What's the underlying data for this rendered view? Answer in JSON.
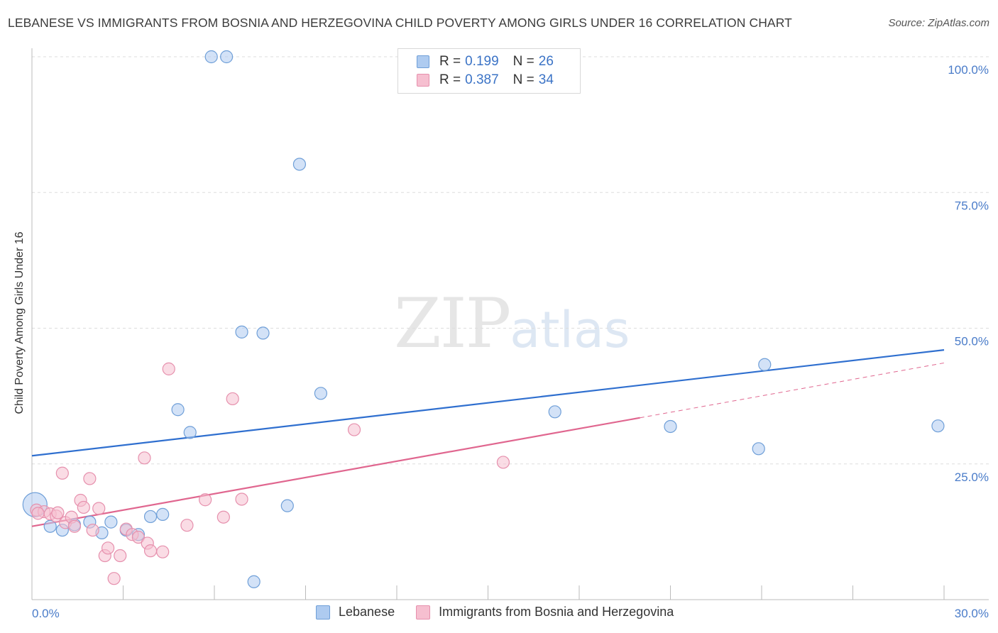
{
  "title": "LEBANESE VS IMMIGRANTS FROM BOSNIA AND HERZEGOVINA CHILD POVERTY AMONG GIRLS UNDER 16 CORRELATION CHART",
  "source": "Source: ZipAtlas.com",
  "watermark": {
    "zip": "ZIP",
    "atlas": "atlas"
  },
  "legend": {
    "rows": [
      {
        "r_label": "R =",
        "r_value": "0.199",
        "n_label": "N =",
        "n_value": "26"
      },
      {
        "r_label": "R =",
        "r_value": "0.387",
        "n_label": "N =",
        "n_value": "34"
      }
    ],
    "bottom": [
      "Lebanese",
      "Immigrants from Bosnia and Herzegovina"
    ]
  },
  "colors": {
    "blue_fill": "#aecbf0",
    "blue_stroke": "#6f9fd8",
    "blue_line": "#2f6fcf",
    "pink_fill": "#f6bfd0",
    "pink_stroke": "#e690ad",
    "pink_line": "#e0668f",
    "grid": "#dddddd",
    "tick_text": "#4a7cc9"
  },
  "chart_data": {
    "type": "scatter",
    "title": "LEBANESE VS IMMIGRANTS FROM BOSNIA AND HERZEGOVINA CHILD POVERTY AMONG GIRLS UNDER 16 CORRELATION CHART",
    "xlabel": "",
    "ylabel": "Child Poverty Among Girls Under 16",
    "xlim": [
      0,
      30
    ],
    "ylim": [
      0,
      100
    ],
    "x_tick_labels": [
      "0.0%",
      "30.0%"
    ],
    "y_ticks": [
      25,
      50,
      75,
      100
    ],
    "y_tick_labels": [
      "25.0%",
      "50.0%",
      "75.0%",
      "100.0%"
    ],
    "grid": true,
    "series": [
      {
        "name": "Lebanese",
        "color": "#6f9fd8",
        "r": 0.199,
        "n": 26,
        "points": [
          {
            "x": 0.1,
            "y": 17.5,
            "big": true
          },
          {
            "x": 0.6,
            "y": 13.5
          },
          {
            "x": 1.0,
            "y": 12.8
          },
          {
            "x": 1.4,
            "y": 13.8
          },
          {
            "x": 1.9,
            "y": 14.3
          },
          {
            "x": 2.3,
            "y": 12.3
          },
          {
            "x": 2.6,
            "y": 14.3
          },
          {
            "x": 3.1,
            "y": 12.8
          },
          {
            "x": 3.5,
            "y": 12.0
          },
          {
            "x": 3.9,
            "y": 15.3
          },
          {
            "x": 4.3,
            "y": 15.7
          },
          {
            "x": 4.8,
            "y": 35.0
          },
          {
            "x": 5.2,
            "y": 30.8
          },
          {
            "x": 5.9,
            "y": 100.0
          },
          {
            "x": 6.4,
            "y": 100.0
          },
          {
            "x": 6.9,
            "y": 49.3
          },
          {
            "x": 7.3,
            "y": 3.3
          },
          {
            "x": 7.6,
            "y": 49.1
          },
          {
            "x": 8.4,
            "y": 17.3
          },
          {
            "x": 8.8,
            "y": 80.2
          },
          {
            "x": 9.5,
            "y": 38.0
          },
          {
            "x": 17.2,
            "y": 34.6
          },
          {
            "x": 21.0,
            "y": 31.9
          },
          {
            "x": 23.9,
            "y": 27.8
          },
          {
            "x": 24.1,
            "y": 43.3
          },
          {
            "x": 29.8,
            "y": 32.0
          }
        ],
        "trend": {
          "x1": 0,
          "y1": 26.5,
          "x2": 30,
          "y2": 46.0
        }
      },
      {
        "name": "Immigrants from Bosnia and Herzegovina",
        "color": "#e690ad",
        "r": 0.387,
        "n": 34,
        "points": [
          {
            "x": 0.15,
            "y": 16.5
          },
          {
            "x": 0.4,
            "y": 16.2
          },
          {
            "x": 0.6,
            "y": 15.8
          },
          {
            "x": 0.8,
            "y": 15.4
          },
          {
            "x": 0.85,
            "y": 16.0
          },
          {
            "x": 1.0,
            "y": 23.3
          },
          {
            "x": 1.1,
            "y": 14.2
          },
          {
            "x": 1.3,
            "y": 15.2
          },
          {
            "x": 1.4,
            "y": 13.5
          },
          {
            "x": 1.6,
            "y": 18.3
          },
          {
            "x": 1.7,
            "y": 17.0
          },
          {
            "x": 1.9,
            "y": 22.3
          },
          {
            "x": 2.0,
            "y": 12.8
          },
          {
            "x": 2.2,
            "y": 16.8
          },
          {
            "x": 2.4,
            "y": 8.1
          },
          {
            "x": 2.5,
            "y": 9.5
          },
          {
            "x": 2.7,
            "y": 3.9
          },
          {
            "x": 2.9,
            "y": 8.1
          },
          {
            "x": 3.1,
            "y": 13.0
          },
          {
            "x": 3.3,
            "y": 12.0
          },
          {
            "x": 3.5,
            "y": 11.5
          },
          {
            "x": 3.7,
            "y": 26.1
          },
          {
            "x": 3.8,
            "y": 10.4
          },
          {
            "x": 3.9,
            "y": 9.0
          },
          {
            "x": 4.3,
            "y": 8.8
          },
          {
            "x": 4.5,
            "y": 42.5
          },
          {
            "x": 5.1,
            "y": 13.7
          },
          {
            "x": 5.7,
            "y": 18.4
          },
          {
            "x": 6.3,
            "y": 15.2
          },
          {
            "x": 6.6,
            "y": 37.0
          },
          {
            "x": 6.9,
            "y": 18.5
          },
          {
            "x": 10.6,
            "y": 31.3
          },
          {
            "x": 15.5,
            "y": 25.3
          },
          {
            "x": 0.2,
            "y": 15.9
          }
        ],
        "trend": {
          "x1": 0,
          "y1": 13.5,
          "x2": 20,
          "y2": 33.5
        },
        "trend_dashed": {
          "x1": 20,
          "y1": 33.5,
          "x2": 30,
          "y2": 43.6
        }
      }
    ]
  }
}
